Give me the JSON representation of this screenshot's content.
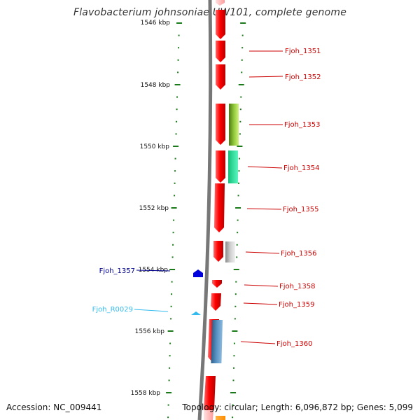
{
  "title": "Flavobacterium johnsoniae UW101, complete genome",
  "accession": "Accession: NC_009441",
  "topology": "Topology: circular; Length: 6,096,872 bp; Genes: 5,099",
  "colors": {
    "backbone": "#777777",
    "tick": "#1a7a1a",
    "forward_label": "#cc0000",
    "reverse_label": "#00008b",
    "rna_label": "#33bbee"
  },
  "ticks": [
    "1546 kbp",
    "1548 kbp",
    "1550 kbp",
    "1552 kbp",
    "1554 kbp",
    "1556 kbp",
    "1558 kbp"
  ],
  "genes": [
    {
      "label": "Fjoh_1351",
      "strand": "forward"
    },
    {
      "label": "Fjoh_1352",
      "strand": "forward"
    },
    {
      "label": "Fjoh_1353",
      "strand": "forward"
    },
    {
      "label": "Fjoh_1354",
      "strand": "forward"
    },
    {
      "label": "Fjoh_1355",
      "strand": "forward"
    },
    {
      "label": "Fjoh_1356",
      "strand": "forward"
    },
    {
      "label": "Fjoh_1357",
      "strand": "reverse"
    },
    {
      "label": "Fjoh_R0029",
      "strand": "rna"
    },
    {
      "label": "Fjoh_1358",
      "strand": "forward"
    },
    {
      "label": "Fjoh_1359",
      "strand": "forward"
    },
    {
      "label": "Fjoh_1360",
      "strand": "forward"
    }
  ]
}
